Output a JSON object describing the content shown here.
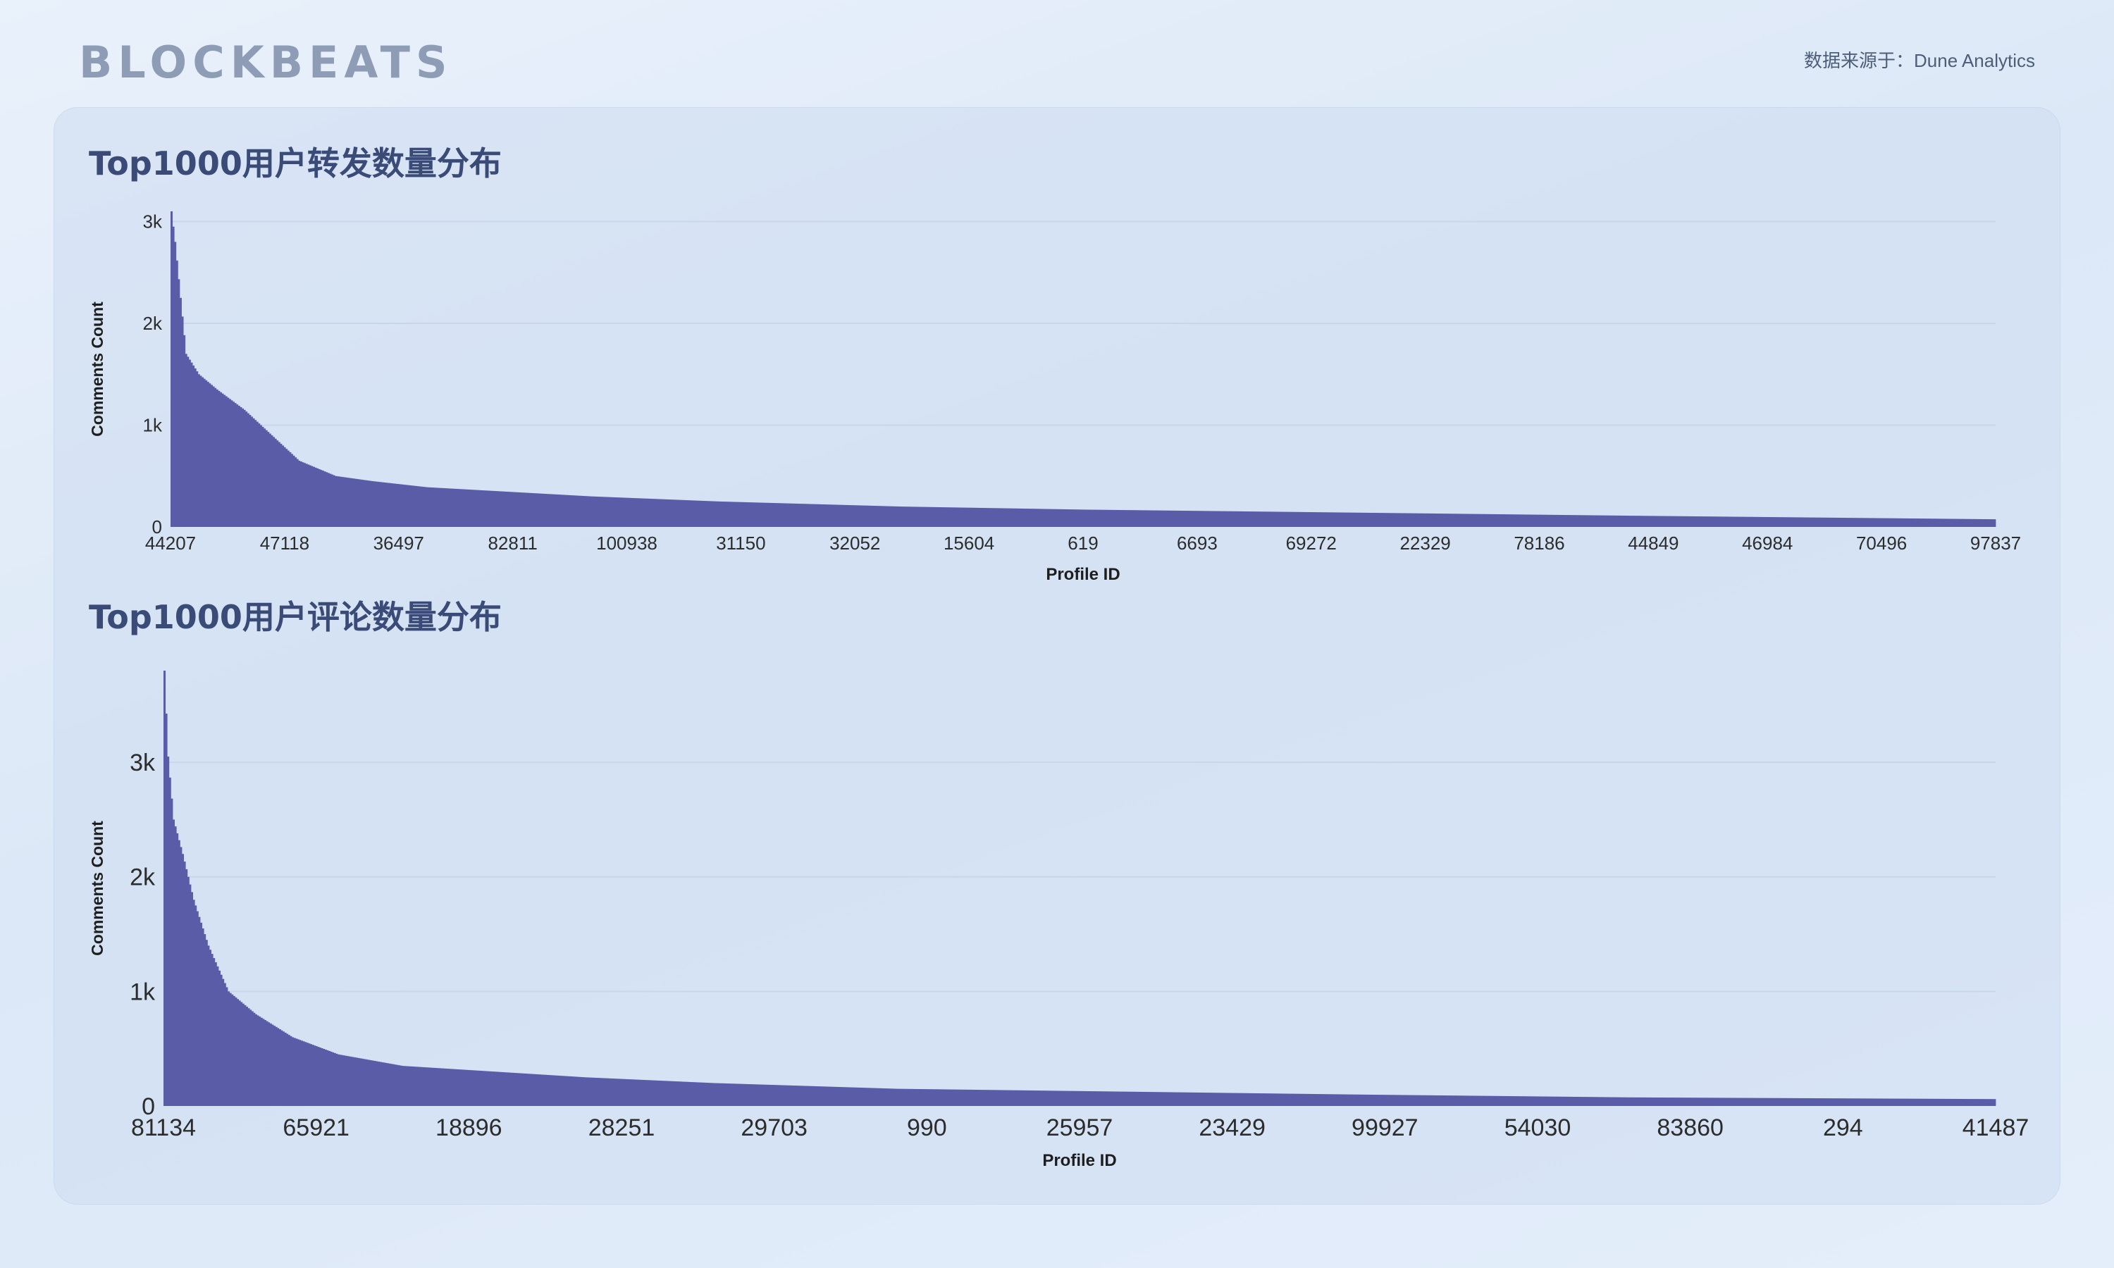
{
  "header": {
    "logo": "BLOCKBEATS",
    "source": "数据来源于：Dune Analytics"
  },
  "colors": {
    "bar": "#5a5ca8",
    "grid": "#c8d6ea",
    "title": "#3a4b78"
  },
  "chart_data": [
    {
      "type": "bar",
      "title": "Top1000用户转发数量分布",
      "xlabel": "Profile ID",
      "ylabel": "Comments Count",
      "ylim": [
        0,
        3100
      ],
      "yticks": [
        0,
        1000,
        2000,
        3000
      ],
      "ytick_labels": [
        "0",
        "1k",
        "2k",
        "3k"
      ],
      "xtick_labels": [
        "44207",
        "47118",
        "36497",
        "82811",
        "100938",
        "31150",
        "32052",
        "15604",
        "619",
        "6693",
        "69272",
        "22329",
        "78186",
        "44849",
        "46984",
        "70496",
        "97837"
      ],
      "n_bars": 1000,
      "curve": [
        [
          0,
          3100
        ],
        [
          2,
          2800
        ],
        [
          8,
          1700
        ],
        [
          15,
          1500
        ],
        [
          25,
          1350
        ],
        [
          40,
          1150
        ],
        [
          55,
          900
        ],
        [
          70,
          650
        ],
        [
          90,
          500
        ],
        [
          110,
          450
        ],
        [
          140,
          390
        ],
        [
          180,
          350
        ],
        [
          230,
          300
        ],
        [
          300,
          250
        ],
        [
          400,
          200
        ],
        [
          500,
          170
        ],
        [
          650,
          140
        ],
        [
          800,
          110
        ],
        [
          1000,
          75
        ]
      ],
      "grid": true
    },
    {
      "type": "bar",
      "title": "Top1000用户评论数量分布",
      "xlabel": "Profile ID",
      "ylabel": "Comments Count",
      "ylim": [
        0,
        3800
      ],
      "yticks": [
        0,
        1000,
        2000,
        3000
      ],
      "ytick_labels": [
        "0",
        "1k",
        "2k",
        "3k"
      ],
      "xtick_labels": [
        "81134",
        "65921",
        "18896",
        "28251",
        "29703",
        "990",
        "25957",
        "23429",
        "99927",
        "54030",
        "83860",
        "294",
        "41487"
      ],
      "n_bars": 1000,
      "curve": [
        [
          0,
          3800
        ],
        [
          2,
          3050
        ],
        [
          5,
          2500
        ],
        [
          10,
          2200
        ],
        [
          16,
          1800
        ],
        [
          24,
          1400
        ],
        [
          35,
          1000
        ],
        [
          50,
          800
        ],
        [
          70,
          600
        ],
        [
          95,
          450
        ],
        [
          130,
          350
        ],
        [
          180,
          300
        ],
        [
          230,
          250
        ],
        [
          300,
          200
        ],
        [
          400,
          150
        ],
        [
          500,
          130
        ],
        [
          650,
          100
        ],
        [
          800,
          75
        ],
        [
          1000,
          60
        ]
      ],
      "grid": true
    }
  ]
}
